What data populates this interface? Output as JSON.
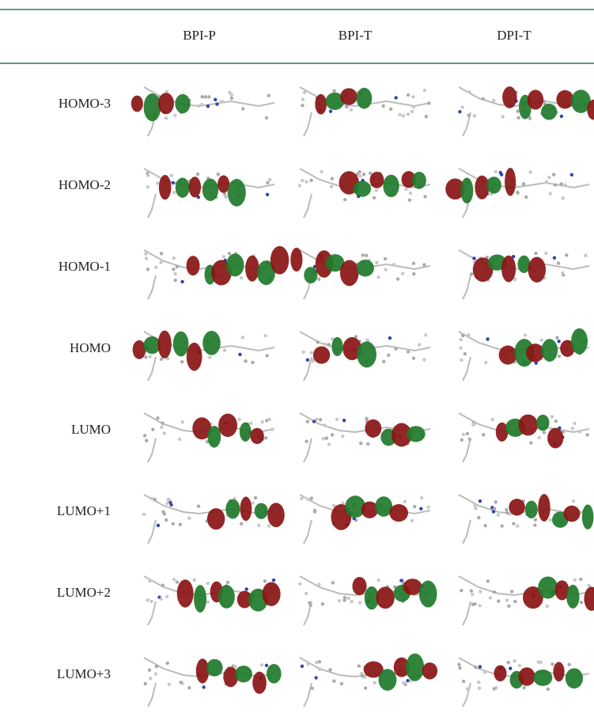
{
  "table": {
    "columns": [
      "BPI-P",
      "BPI-T",
      "DPI-T"
    ],
    "rows": [
      "HOMO-3",
      "HOMO-2",
      "HOMO-1",
      "HOMO",
      "LUMO",
      "LUMO+1",
      "LUMO+2",
      "LUMO+3"
    ]
  }
}
